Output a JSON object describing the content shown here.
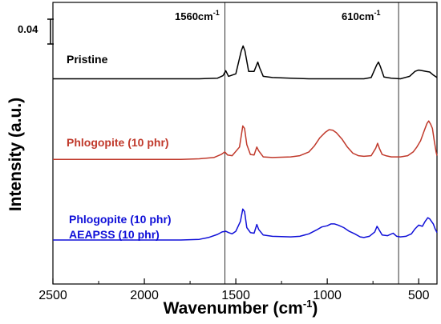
{
  "chart_data": {
    "type": "line",
    "xlabel": "Wavenumber (cm",
    "xlabel_sup": "-1",
    "xlabel_end": ")",
    "ylabel": "Intensity (a.u.)",
    "xlim": [
      2500,
      400
    ],
    "x_reversed": true,
    "x_ticks": [
      2500,
      2000,
      1500,
      1000,
      500
    ],
    "scale_bar_label": "0.04",
    "scale_bar_value": 0.04,
    "reference_lines": [
      {
        "x": 1560,
        "label": "1560cm",
        "sup": "-1"
      },
      {
        "x": 610,
        "label": "610cm",
        "sup": "-1"
      }
    ],
    "series": [
      {
        "name": "Pristine",
        "color": "#000000",
        "offset": 0.26,
        "points": [
          [
            2500,
            0
          ],
          [
            2000,
            0
          ],
          [
            1700,
            0
          ],
          [
            1600,
            0.001
          ],
          [
            1570,
            0.005
          ],
          [
            1555,
            0.013
          ],
          [
            1540,
            0.004
          ],
          [
            1500,
            0.008
          ],
          [
            1470,
            0.045
          ],
          [
            1460,
            0.053
          ],
          [
            1450,
            0.045
          ],
          [
            1430,
            0.012
          ],
          [
            1400,
            0.012
          ],
          [
            1380,
            0.027
          ],
          [
            1370,
            0.018
          ],
          [
            1350,
            0.004
          ],
          [
            1300,
            0.002
          ],
          [
            1200,
            0.001
          ],
          [
            1100,
            0
          ],
          [
            1000,
            0
          ],
          [
            900,
            0
          ],
          [
            800,
            0
          ],
          [
            760,
            0.002
          ],
          [
            730,
            0.022
          ],
          [
            720,
            0.027
          ],
          [
            710,
            0.02
          ],
          [
            690,
            0.003
          ],
          [
            650,
            0.001
          ],
          [
            600,
            0
          ],
          [
            550,
            0.004
          ],
          [
            520,
            0.012
          ],
          [
            500,
            0.014
          ],
          [
            480,
            0.013
          ],
          [
            460,
            0.012
          ],
          [
            440,
            0.011
          ],
          [
            420,
            0.006
          ],
          [
            400,
            0.002
          ]
        ]
      },
      {
        "name": "Phlogopite (10 phr)",
        "color": "#c0392b",
        "offset": 0.13,
        "points": [
          [
            2500,
            0
          ],
          [
            2000,
            0
          ],
          [
            1800,
            0
          ],
          [
            1700,
            0.001
          ],
          [
            1620,
            0.003
          ],
          [
            1580,
            0.008
          ],
          [
            1560,
            0.012
          ],
          [
            1545,
            0.007
          ],
          [
            1520,
            0.006
          ],
          [
            1480,
            0.02
          ],
          [
            1462,
            0.054
          ],
          [
            1452,
            0.05
          ],
          [
            1440,
            0.024
          ],
          [
            1420,
            0.008
          ],
          [
            1400,
            0.007
          ],
          [
            1385,
            0.02
          ],
          [
            1375,
            0.014
          ],
          [
            1350,
            0.004
          ],
          [
            1300,
            0.003
          ],
          [
            1200,
            0.004
          ],
          [
            1150,
            0.006
          ],
          [
            1100,
            0.012
          ],
          [
            1070,
            0.022
          ],
          [
            1040,
            0.035
          ],
          [
            1010,
            0.044
          ],
          [
            990,
            0.048
          ],
          [
            970,
            0.047
          ],
          [
            950,
            0.043
          ],
          [
            920,
            0.033
          ],
          [
            890,
            0.02
          ],
          [
            860,
            0.01
          ],
          [
            830,
            0.006
          ],
          [
            800,
            0.005
          ],
          [
            760,
            0.006
          ],
          [
            735,
            0.018
          ],
          [
            725,
            0.026
          ],
          [
            715,
            0.018
          ],
          [
            700,
            0.008
          ],
          [
            680,
            0.006
          ],
          [
            650,
            0.004
          ],
          [
            600,
            0.004
          ],
          [
            560,
            0.006
          ],
          [
            530,
            0.012
          ],
          [
            510,
            0.02
          ],
          [
            490,
            0.03
          ],
          [
            470,
            0.046
          ],
          [
            455,
            0.058
          ],
          [
            445,
            0.062
          ],
          [
            435,
            0.057
          ],
          [
            425,
            0.05
          ],
          [
            415,
            0.03
          ],
          [
            405,
            0.012
          ],
          [
            400,
            0.006
          ]
        ]
      },
      {
        "name": "Phlogopite (10 phr)",
        "name2": "AEAPSS (10 phr)",
        "color": "#1010d8",
        "offset": 0.0,
        "points": [
          [
            2500,
            0
          ],
          [
            2000,
            0
          ],
          [
            1800,
            0
          ],
          [
            1700,
            0.001
          ],
          [
            1650,
            0.004
          ],
          [
            1600,
            0.009
          ],
          [
            1575,
            0.013
          ],
          [
            1555,
            0.014
          ],
          [
            1540,
            0.012
          ],
          [
            1520,
            0.01
          ],
          [
            1500,
            0.014
          ],
          [
            1475,
            0.03
          ],
          [
            1462,
            0.05
          ],
          [
            1452,
            0.046
          ],
          [
            1440,
            0.02
          ],
          [
            1420,
            0.012
          ],
          [
            1400,
            0.011
          ],
          [
            1385,
            0.025
          ],
          [
            1375,
            0.017
          ],
          [
            1350,
            0.008
          ],
          [
            1300,
            0.006
          ],
          [
            1200,
            0.005
          ],
          [
            1150,
            0.006
          ],
          [
            1100,
            0.01
          ],
          [
            1060,
            0.016
          ],
          [
            1030,
            0.021
          ],
          [
            1000,
            0.023
          ],
          [
            980,
            0.026
          ],
          [
            960,
            0.026
          ],
          [
            940,
            0.024
          ],
          [
            910,
            0.02
          ],
          [
            880,
            0.014
          ],
          [
            850,
            0.01
          ],
          [
            820,
            0.005
          ],
          [
            800,
            0.004
          ],
          [
            770,
            0.006
          ],
          [
            740,
            0.013
          ],
          [
            728,
            0.022
          ],
          [
            718,
            0.017
          ],
          [
            700,
            0.008
          ],
          [
            670,
            0.007
          ],
          [
            640,
            0.011
          ],
          [
            620,
            0.006
          ],
          [
            600,
            0.005
          ],
          [
            570,
            0.006
          ],
          [
            540,
            0.01
          ],
          [
            520,
            0.018
          ],
          [
            500,
            0.024
          ],
          [
            480,
            0.022
          ],
          [
            465,
            0.03
          ],
          [
            450,
            0.036
          ],
          [
            440,
            0.034
          ],
          [
            430,
            0.03
          ],
          [
            420,
            0.026
          ],
          [
            410,
            0.018
          ],
          [
            400,
            0.012
          ]
        ]
      }
    ]
  }
}
